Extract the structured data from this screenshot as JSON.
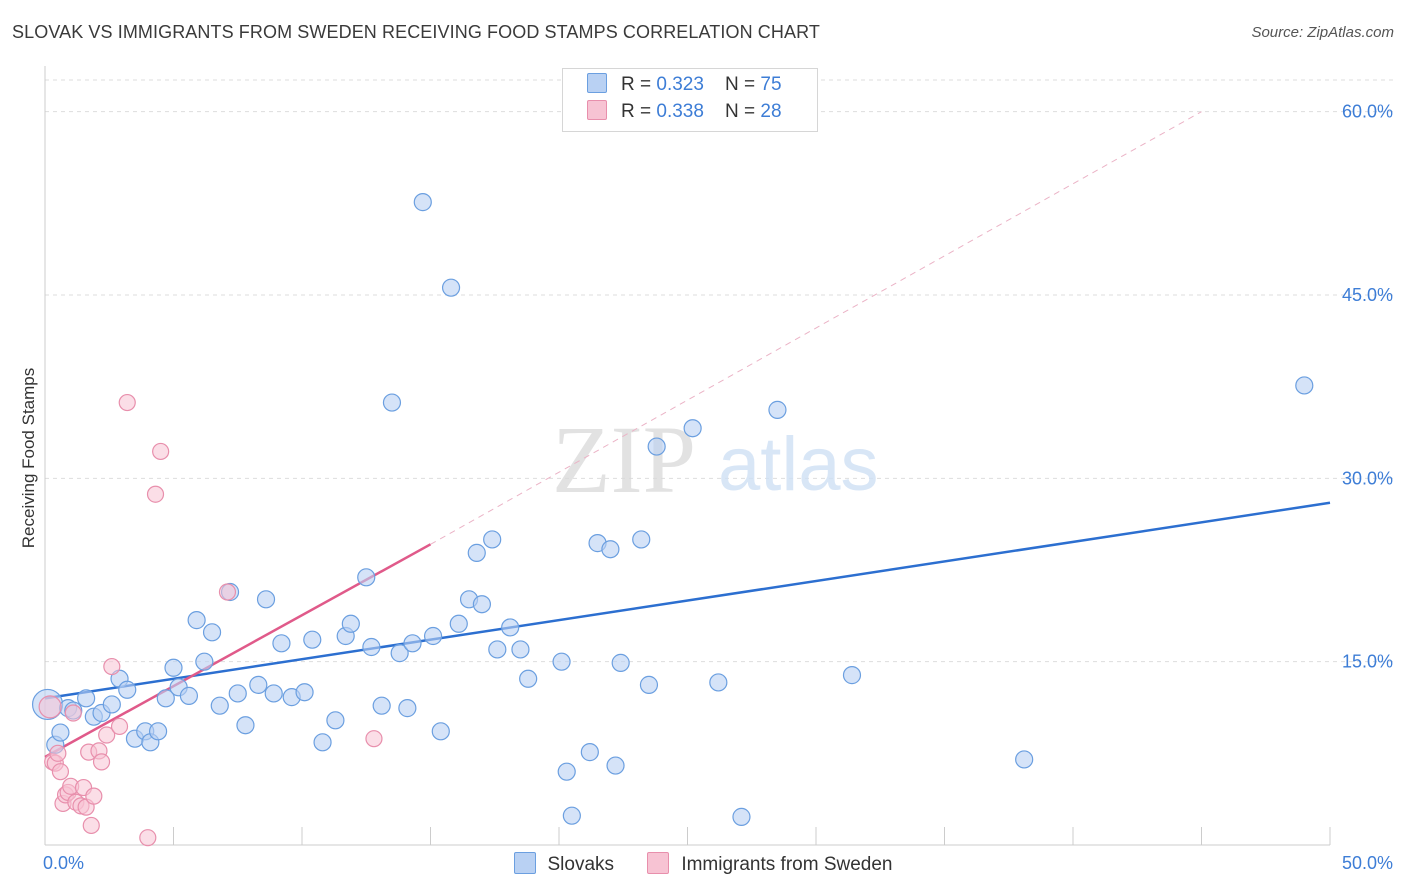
{
  "title": "SLOVAK VS IMMIGRANTS FROM SWEDEN RECEIVING FOOD STAMPS CORRELATION CHART",
  "source": "Source: ZipAtlas.com",
  "watermark": {
    "zip": "ZIP",
    "atlas": "atlas"
  },
  "colors": {
    "blue_fill": "#b9d1f3",
    "blue_stroke": "#6b9fe0",
    "blue_line": "#2c6fd0",
    "pink_fill": "#f7c3d3",
    "pink_stroke": "#e88fac",
    "pink_line": "#e05a8a",
    "tick_text": "#3d7dd6",
    "grid": "#dddddd"
  },
  "legend_top": [
    {
      "r_label": "R = ",
      "r_value": "0.323",
      "n_label": "N = ",
      "n_value": "75"
    },
    {
      "r_label": "R = ",
      "r_value": "0.338",
      "n_label": "N = ",
      "n_value": "28"
    }
  ],
  "legend_bottom": [
    "Slovaks",
    "Immigrants from Sweden"
  ],
  "chart_data": {
    "type": "scatter",
    "title": "SLOVAK VS IMMIGRANTS FROM SWEDEN RECEIVING FOOD STAMPS CORRELATION CHART",
    "xlabel": "",
    "ylabel": "Receiving Food Stamps",
    "xlim": [
      0,
      50
    ],
    "ylim": [
      0,
      63
    ],
    "x_tick_labels": [
      {
        "value": 0,
        "label": "0.0%"
      },
      {
        "value": 50,
        "label": "50.0%"
      }
    ],
    "y_tick_labels": [
      {
        "value": 15,
        "label": "15.0%"
      },
      {
        "value": 30,
        "label": "30.0%"
      },
      {
        "value": 45,
        "label": "45.0%"
      },
      {
        "value": 60,
        "label": "60.0%"
      }
    ],
    "series": [
      {
        "name": "Slovaks",
        "r": 0.323,
        "n": 75,
        "trend": [
          [
            0,
            12.0
          ],
          [
            50,
            28.0
          ]
        ],
        "points": [
          [
            0.1,
            11.5
          ],
          [
            0.4,
            8.2
          ],
          [
            0.6,
            9.2
          ],
          [
            0.9,
            11.2
          ],
          [
            1.1,
            11.0
          ],
          [
            1.6,
            12.0
          ],
          [
            1.9,
            10.5
          ],
          [
            2.2,
            10.8
          ],
          [
            2.6,
            11.5
          ],
          [
            2.9,
            13.6
          ],
          [
            3.2,
            12.7
          ],
          [
            3.5,
            8.7
          ],
          [
            3.9,
            9.3
          ],
          [
            4.1,
            8.4
          ],
          [
            4.4,
            9.3
          ],
          [
            4.7,
            12.0
          ],
          [
            5.0,
            14.5
          ],
          [
            5.2,
            12.9
          ],
          [
            5.6,
            12.2
          ],
          [
            5.9,
            18.4
          ],
          [
            6.2,
            15.0
          ],
          [
            6.5,
            17.4
          ],
          [
            6.8,
            11.4
          ],
          [
            7.2,
            20.7
          ],
          [
            7.5,
            12.4
          ],
          [
            7.8,
            9.8
          ],
          [
            8.3,
            13.1
          ],
          [
            8.6,
            20.1
          ],
          [
            8.9,
            12.4
          ],
          [
            9.2,
            16.5
          ],
          [
            9.6,
            12.1
          ],
          [
            10.1,
            12.5
          ],
          [
            10.4,
            16.8
          ],
          [
            10.8,
            8.4
          ],
          [
            11.3,
            10.2
          ],
          [
            11.7,
            17.1
          ],
          [
            11.9,
            18.1
          ],
          [
            12.5,
            21.9
          ],
          [
            12.7,
            16.2
          ],
          [
            13.1,
            11.4
          ],
          [
            13.5,
            36.2
          ],
          [
            13.8,
            15.7
          ],
          [
            14.1,
            11.2
          ],
          [
            14.3,
            16.5
          ],
          [
            14.7,
            52.6
          ],
          [
            15.1,
            17.1
          ],
          [
            15.4,
            9.3
          ],
          [
            15.8,
            45.6
          ],
          [
            16.1,
            18.1
          ],
          [
            16.5,
            20.1
          ],
          [
            16.8,
            23.9
          ],
          [
            17.0,
            19.7
          ],
          [
            17.4,
            25.0
          ],
          [
            17.6,
            16.0
          ],
          [
            18.1,
            17.8
          ],
          [
            18.5,
            16.0
          ],
          [
            18.8,
            13.6
          ],
          [
            20.1,
            15.0
          ],
          [
            20.3,
            6.0
          ],
          [
            20.5,
            2.4
          ],
          [
            21.2,
            7.6
          ],
          [
            21.5,
            24.7
          ],
          [
            22.0,
            24.2
          ],
          [
            22.2,
            6.5
          ],
          [
            22.4,
            14.9
          ],
          [
            23.2,
            25.0
          ],
          [
            23.5,
            13.1
          ],
          [
            23.8,
            32.6
          ],
          [
            25.2,
            34.1
          ],
          [
            26.2,
            13.3
          ],
          [
            27.1,
            2.3
          ],
          [
            28.5,
            35.6
          ],
          [
            31.4,
            13.9
          ],
          [
            38.1,
            7.0
          ],
          [
            49.0,
            37.6
          ]
        ]
      },
      {
        "name": "Immigrants from Sweden",
        "r": 0.338,
        "n": 28,
        "trend": [
          [
            0,
            7.2
          ],
          [
            15,
            24.6
          ]
        ],
        "trend_extended": [
          [
            15,
            24.6
          ],
          [
            45,
            60.0
          ]
        ],
        "points": [
          [
            0.2,
            11.3
          ],
          [
            0.3,
            6.8
          ],
          [
            0.4,
            6.7
          ],
          [
            0.5,
            7.5
          ],
          [
            0.6,
            6.0
          ],
          [
            0.7,
            3.4
          ],
          [
            0.8,
            4.1
          ],
          [
            0.9,
            4.3
          ],
          [
            1.0,
            4.8
          ],
          [
            1.1,
            10.8
          ],
          [
            1.2,
            3.5
          ],
          [
            1.4,
            3.2
          ],
          [
            1.5,
            4.7
          ],
          [
            1.6,
            3.1
          ],
          [
            1.7,
            7.6
          ],
          [
            1.8,
            1.6
          ],
          [
            1.9,
            4.0
          ],
          [
            2.1,
            7.7
          ],
          [
            2.2,
            6.8
          ],
          [
            2.4,
            9.0
          ],
          [
            2.6,
            14.6
          ],
          [
            2.9,
            9.7
          ],
          [
            3.2,
            36.2
          ],
          [
            4.0,
            0.6
          ],
          [
            4.3,
            28.7
          ],
          [
            4.5,
            32.2
          ],
          [
            7.1,
            20.7
          ],
          [
            12.8,
            8.7
          ]
        ]
      }
    ]
  }
}
